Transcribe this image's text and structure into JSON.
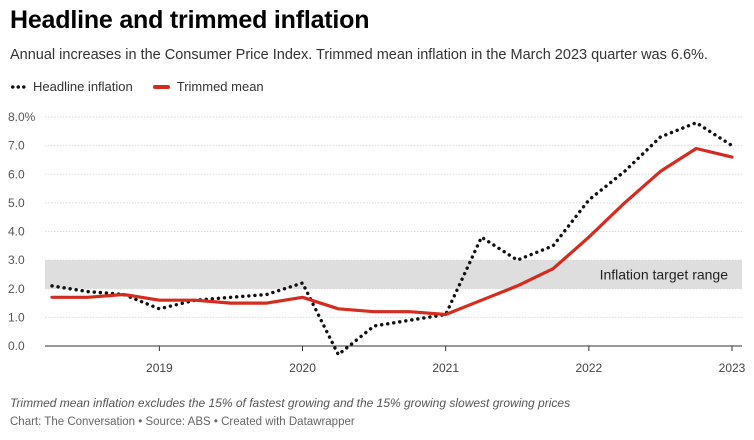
{
  "title": "Headline and trimmed inflation",
  "subtitle": "Annual increases in the Consumer Price Index. Trimmed mean inflation in the March 2023 quarter was 6.6%.",
  "legend": {
    "headline": "Headline inflation",
    "trimmed": "Trimmed mean"
  },
  "note": "Trimmed mean inflation excludes the 15% of fastest growing and the 15% growing slowest growing prices",
  "credits": "Chart: The Conversation • Source: ABS • Created with Datawrapper",
  "colors": {
    "headline": "#111111",
    "trimmed": "#d62b1f",
    "band": "#dedede",
    "grid": "#d9d9d9"
  },
  "chart_data": {
    "type": "line",
    "title": "Headline and trimmed inflation",
    "subtitle": "Annual increases in the Consumer Price Index. Trimmed mean inflation in the March 2023 quarter was 6.6%.",
    "x": [
      "Jun 2018",
      "Sep 2018",
      "Dec 2018",
      "Mar 2019",
      "Jun 2019",
      "Sep 2019",
      "Dec 2019",
      "Mar 2020",
      "Jun 2020",
      "Sep 2020",
      "Dec 2020",
      "Mar 2021",
      "Jun 2021",
      "Sep 2021",
      "Dec 2021",
      "Mar 2022",
      "Jun 2022",
      "Sep 2022",
      "Dec 2022",
      "Mar 2023"
    ],
    "x_tick_labels": [
      "2019",
      "2020",
      "2021",
      "2022",
      "2023"
    ],
    "x_tick_positions": [
      "Mar 2019",
      "Mar 2020",
      "Mar 2021",
      "Mar 2022",
      "Mar 2023"
    ],
    "y_tick_labels": [
      "0.0",
      "1.0",
      "2.0",
      "3.0",
      "4.0",
      "5.0",
      "6.0",
      "7.0",
      "8.0%"
    ],
    "ylim": [
      0,
      8
    ],
    "series": [
      {
        "name": "Headline inflation",
        "style": "dotted",
        "color": "#111111",
        "values": [
          2.1,
          1.9,
          1.8,
          1.3,
          1.6,
          1.7,
          1.8,
          2.2,
          -0.3,
          0.7,
          0.9,
          1.1,
          3.8,
          3.0,
          3.5,
          5.1,
          6.1,
          7.3,
          7.8,
          7.0
        ]
      },
      {
        "name": "Trimmed mean",
        "style": "solid",
        "color": "#d62b1f",
        "values": [
          1.7,
          1.7,
          1.8,
          1.6,
          1.6,
          1.5,
          1.5,
          1.7,
          1.3,
          1.2,
          1.2,
          1.1,
          1.6,
          2.1,
          2.7,
          3.8,
          5.0,
          6.1,
          6.9,
          6.6
        ]
      }
    ],
    "band": {
      "from": 2.0,
      "to": 3.0,
      "label": "Inflation target range",
      "color": "#dedede"
    },
    "grid": true,
    "legend_position": "top-left"
  }
}
